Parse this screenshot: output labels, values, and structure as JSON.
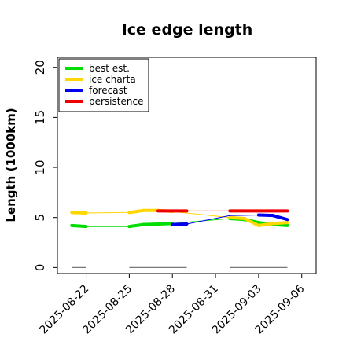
{
  "chart_data": {
    "type": "line",
    "title": "Ice edge length",
    "xlabel": "",
    "ylabel": "Length (1000km)",
    "ylim": [
      -0.6,
      21
    ],
    "xlim": [
      "2025-08-20",
      "2025-09-07"
    ],
    "grid": false,
    "legend_position": "top-left",
    "y_ticks": [
      0,
      5,
      10,
      15,
      20
    ],
    "x_ticks": [
      {
        "date": "2025-08-22",
        "label": "2025-08-22",
        "color": "#000000"
      },
      {
        "date": "2025-08-25",
        "label": "2025-08-25",
        "color": "#000000"
      },
      {
        "date": "2025-08-28",
        "label": "2025-08-28",
        "color": "#228b22"
      },
      {
        "date": "2025-08-31",
        "label": "2025-08-31",
        "color": "#000000"
      },
      {
        "date": "2025-09-03",
        "label": "2025-09-03",
        "color": "#000000"
      },
      {
        "date": "2025-09-06",
        "label": "2025-09-06",
        "color": "#000000"
      }
    ],
    "series": [
      {
        "name": "best est.",
        "color": "#00dd00",
        "points": [
          {
            "x": "2025-08-21",
            "y": 4.2
          },
          {
            "x": "2025-08-22",
            "y": 4.1
          },
          {
            "x": "2025-08-25",
            "y": 4.1
          },
          {
            "x": "2025-08-26",
            "y": 4.3
          },
          {
            "x": "2025-08-27",
            "y": 4.35
          },
          {
            "x": "2025-08-28",
            "y": 4.4
          },
          {
            "x": "2025-09-01",
            "y": 4.9
          },
          {
            "x": "2025-09-02",
            "y": 4.8
          },
          {
            "x": "2025-09-03",
            "y": 4.5
          },
          {
            "x": "2025-09-04",
            "y": 4.3
          },
          {
            "x": "2025-09-05",
            "y": 4.2
          }
        ]
      },
      {
        "name": "ice charta",
        "color": "#ffd700",
        "points": [
          {
            "x": "2025-08-21",
            "y": 5.5
          },
          {
            "x": "2025-08-22",
            "y": 5.45
          },
          {
            "x": "2025-08-25",
            "y": 5.5
          },
          {
            "x": "2025-08-26",
            "y": 5.7
          },
          {
            "x": "2025-08-27",
            "y": 5.7
          },
          {
            "x": "2025-08-28",
            "y": 5.6
          },
          {
            "x": "2025-09-01",
            "y": 5.0
          },
          {
            "x": "2025-09-02",
            "y": 4.9
          },
          {
            "x": "2025-09-03",
            "y": 4.2
          },
          {
            "x": "2025-09-04",
            "y": 4.4
          },
          {
            "x": "2025-09-05",
            "y": 4.5
          }
        ]
      },
      {
        "name": "forecast",
        "color": "#0000ee",
        "points": [
          {
            "x": "2025-08-28",
            "y": 4.3
          },
          {
            "x": "2025-08-29",
            "y": 4.35
          },
          {
            "x": "2025-09-01",
            "y": 5.2
          },
          {
            "x": "2025-09-03",
            "y": 5.25
          },
          {
            "x": "2025-09-04",
            "y": 5.2
          },
          {
            "x": "2025-09-05",
            "y": 4.8
          }
        ]
      },
      {
        "name": "persistence",
        "color": "#ee0000",
        "points": [
          {
            "x": "2025-08-27",
            "y": 5.65
          },
          {
            "x": "2025-08-29",
            "y": 5.65
          },
          {
            "x": "2025-09-01",
            "y": 5.65
          },
          {
            "x": "2025-09-05",
            "y": 5.65
          }
        ]
      }
    ],
    "reference_lines": [
      {
        "color": "#777777",
        "y": 0,
        "from": "2025-08-21",
        "to": "2025-08-22"
      },
      {
        "color": "#777777",
        "y": 0,
        "from": "2025-08-25",
        "to": "2025-08-29"
      },
      {
        "color": "#777777",
        "y": 0,
        "from": "2025-09-01",
        "to": "2025-09-05"
      }
    ]
  }
}
